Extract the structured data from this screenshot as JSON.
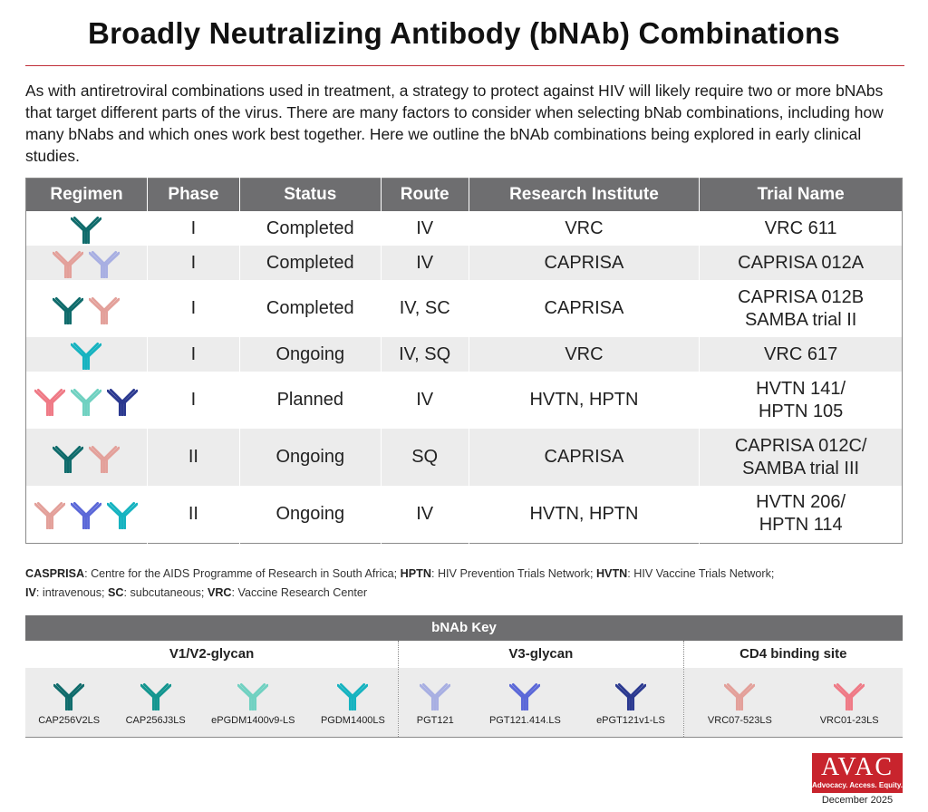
{
  "title": "Broadly Neutralizing Antibody (bNAb) Combinations",
  "intro": "As with antiretroviral combinations used in treatment, a strategy to protect against HIV will likely require two or more bNAbs that target different parts of the virus. There are many factors to consider when selecting bNab combinations, including how many bNabs and which ones work best together. Here we outline the bNAb combinations being explored in early clinical studies.",
  "table": {
    "headers": [
      "Regimen",
      "Phase",
      "Status",
      "Route",
      "Research Institute",
      "Trial Name"
    ],
    "rows": [
      {
        "icons": [
          "#0f6b6b"
        ],
        "phase": "I",
        "status": "Completed",
        "route": "IV",
        "institute": "VRC",
        "trial": "VRC 611"
      },
      {
        "icons": [
          "#e3a09a",
          "#a8afe2"
        ],
        "phase": "I",
        "status": "Completed",
        "route": "IV",
        "institute": "CAPRISA",
        "trial": "CAPRISA 012A"
      },
      {
        "icons": [
          "#0f6b6b",
          "#e3a09a"
        ],
        "phase": "I",
        "status": "Completed",
        "route": "IV, SC",
        "institute": "CAPRISA",
        "trial": "CAPRISA 012B\nSAMBA trial II"
      },
      {
        "icons": [
          "#16b3c0"
        ],
        "phase": "I",
        "status": "Ongoing",
        "route": "IV, SQ",
        "institute": "VRC",
        "trial": "VRC 617"
      },
      {
        "icons": [
          "#ef7a86",
          "#70d1c1",
          "#2b3990"
        ],
        "phase": "I",
        "status": "Planned",
        "route": "IV",
        "institute": "HVTN, HPTN",
        "trial": "HVTN 141/\nHPTN 105"
      },
      {
        "icons": [
          "#0f6b6b",
          "#e3a09a"
        ],
        "phase": "II",
        "status": "Ongoing",
        "route": "SQ",
        "institute": "CAPRISA",
        "trial": "CAPRISA 012C/\nSAMBA trial III"
      },
      {
        "icons": [
          "#e3a09a",
          "#5b68d8",
          "#16b3c0"
        ],
        "phase": "II",
        "status": "Ongoing",
        "route": "IV",
        "institute": "HVTN, HPTN",
        "trial": "HVTN 206/\nHPTN 114"
      }
    ]
  },
  "abbreviations": {
    "line1": [
      {
        "term": "CASPRISA",
        "def": ": Centre for the AIDS Programme of Research in South Africa; "
      },
      {
        "term": "HPTN",
        "def": ": HIV Prevention Trials Network; "
      },
      {
        "term": "HVTN",
        "def": ": HIV Vaccine Trials Network;"
      }
    ],
    "line2": [
      {
        "term": "IV",
        "def": ": intravenous; "
      },
      {
        "term": "SC",
        "def": ": subcutaneous; "
      },
      {
        "term": "VRC",
        "def": ": Vaccine Research Center"
      }
    ]
  },
  "key": {
    "title": "bNAb Key",
    "groups": [
      {
        "name": "V1/V2-glycan",
        "items": [
          {
            "label": "CAP256V2LS",
            "color": "#0f6b6b"
          },
          {
            "label": "CAP256J3LS",
            "color": "#13958f"
          },
          {
            "label": "ePGDM1400v9-LS",
            "color": "#70d1c1"
          },
          {
            "label": "PGDM1400LS",
            "color": "#16b3c0"
          }
        ]
      },
      {
        "name": "V3-glycan",
        "items": [
          {
            "label": "PGT121",
            "color": "#a8afe2"
          },
          {
            "label": "PGT121.414.LS",
            "color": "#5b68d8"
          },
          {
            "label": "ePGT121v1-LS",
            "color": "#2b3990"
          }
        ]
      },
      {
        "name": "CD4 binding site",
        "items": [
          {
            "label": "VRC07-523LS",
            "color": "#e3a09a"
          },
          {
            "label": "VRC01-23LS",
            "color": "#ef7a86"
          }
        ]
      }
    ]
  },
  "logo": {
    "name": "AVAC",
    "tagline": "Advocacy. Access. Equity."
  },
  "date": "December 2025"
}
